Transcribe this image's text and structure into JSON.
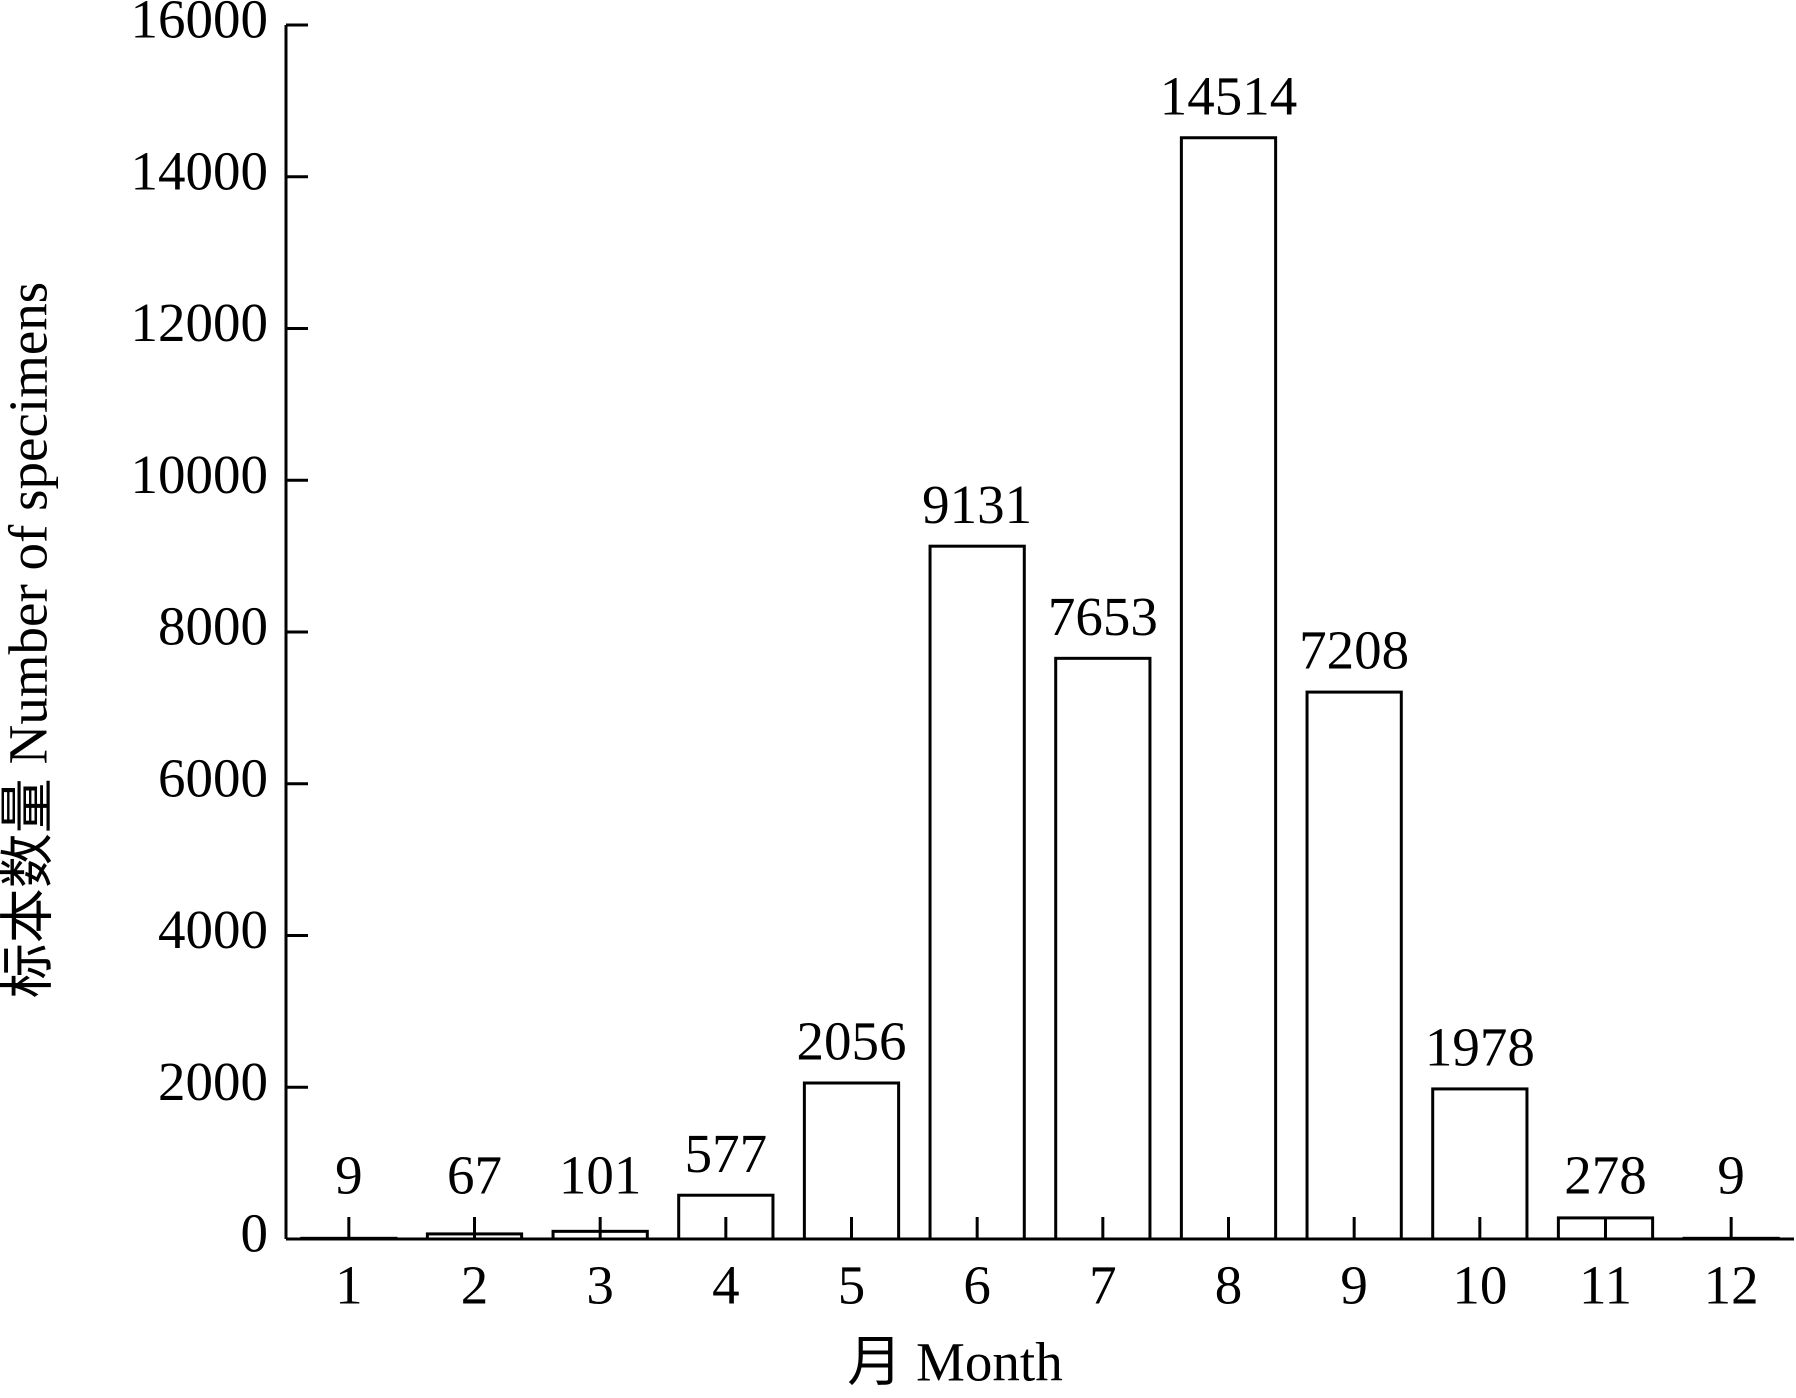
{
  "chart_data": {
    "type": "bar",
    "x_label": "月 Month",
    "y_label": "标本数量 Number of specimens",
    "categories": [
      "1",
      "2",
      "3",
      "4",
      "5",
      "6",
      "7",
      "8",
      "9",
      "10",
      "11",
      "12"
    ],
    "values": [
      9,
      67,
      101,
      577,
      2056,
      9131,
      7653,
      14514,
      7208,
      1978,
      278,
      9
    ],
    "color": "#ffffff",
    "ylim": [
      0,
      16000
    ],
    "yticks": [
      0,
      2000,
      4000,
      6000,
      8000,
      10000,
      12000,
      14000,
      16000
    ],
    "grid": false
  }
}
